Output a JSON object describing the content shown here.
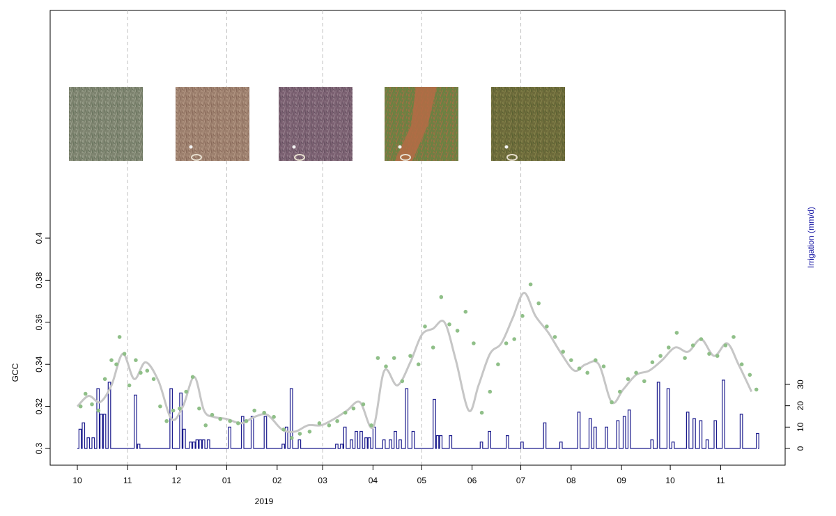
{
  "chart_data": {
    "type": "line",
    "xlabel": "2019",
    "ylabel": "GCC",
    "y2label": "Irrigation (mm/d)",
    "ylim": [
      0.3,
      0.4
    ],
    "y2lim": [
      0,
      30
    ],
    "yticks": [
      "0.3",
      "0.32",
      "0.34",
      "0.36",
      "0.38",
      "0.4"
    ],
    "y2ticks": [
      "0",
      "10",
      "20",
      "30"
    ],
    "x_range": [
      "2018-10-01",
      "2019-11-24"
    ],
    "xticks": [
      {
        "date": "2018-10-01",
        "label": "10"
      },
      {
        "date": "2018-11-01",
        "label": "11"
      },
      {
        "date": "2018-12-01",
        "label": "12"
      },
      {
        "date": "2019-01-01",
        "label": "01"
      },
      {
        "date": "2019-02-01",
        "label": "02"
      },
      {
        "date": "2019-03-01",
        "label": "03"
      },
      {
        "date": "2019-04-01",
        "label": "04"
      },
      {
        "date": "2019-05-01",
        "label": "05"
      },
      {
        "date": "2019-06-01",
        "label": "06"
      },
      {
        "date": "2019-07-01",
        "label": "07"
      },
      {
        "date": "2019-08-01",
        "label": "08"
      },
      {
        "date": "2019-09-01",
        "label": "09"
      },
      {
        "date": "2019-10-01",
        "label": "10"
      },
      {
        "date": "2019-11-01",
        "label": "11"
      }
    ],
    "photo_dates": [
      "2018-11-01",
      "2019-01-01",
      "2019-03-01",
      "2019-05-01",
      "2019-07-01"
    ],
    "gcc_smoothed": {
      "x": [
        "2018-10-01",
        "2018-10-08",
        "2018-10-15",
        "2018-10-22",
        "2018-10-29",
        "2018-11-05",
        "2018-11-12",
        "2018-11-20",
        "2018-11-28",
        "2018-12-05",
        "2018-12-12",
        "2018-12-18",
        "2018-12-24",
        "2019-01-01",
        "2019-01-10",
        "2019-01-18",
        "2019-01-26",
        "2019-02-04",
        "2019-02-12",
        "2019-02-20",
        "2019-02-28",
        "2019-03-08",
        "2019-03-16",
        "2019-03-24",
        "2019-04-01",
        "2019-04-08",
        "2019-04-16",
        "2019-04-24",
        "2019-05-01",
        "2019-05-08",
        "2019-05-15",
        "2019-05-22",
        "2019-05-30",
        "2019-06-05",
        "2019-06-12",
        "2019-06-19",
        "2019-06-26",
        "2019-07-03",
        "2019-07-10",
        "2019-07-18",
        "2019-07-26",
        "2019-08-03",
        "2019-08-10",
        "2019-08-18",
        "2019-08-26",
        "2019-09-02",
        "2019-09-10",
        "2019-09-18",
        "2019-09-26",
        "2019-10-04",
        "2019-10-12",
        "2019-10-20",
        "2019-10-28",
        "2019-11-05",
        "2019-11-12",
        "2019-11-20"
      ],
      "y": [
        0.32,
        0.325,
        0.322,
        0.33,
        0.345,
        0.333,
        0.341,
        0.332,
        0.314,
        0.32,
        0.334,
        0.318,
        0.315,
        0.314,
        0.312,
        0.315,
        0.316,
        0.309,
        0.308,
        0.311,
        0.311,
        0.314,
        0.318,
        0.322,
        0.31,
        0.337,
        0.33,
        0.341,
        0.354,
        0.357,
        0.36,
        0.342,
        0.318,
        0.33,
        0.345,
        0.35,
        0.362,
        0.374,
        0.363,
        0.355,
        0.345,
        0.337,
        0.34,
        0.34,
        0.322,
        0.328,
        0.335,
        0.337,
        0.342,
        0.348,
        0.346,
        0.352,
        0.344,
        0.35,
        0.34,
        0.327
      ]
    },
    "gcc_points": {
      "x": [
        "2018-10-03",
        "2018-10-06",
        "2018-10-10",
        "2018-10-14",
        "2018-10-18",
        "2018-10-22",
        "2018-10-25",
        "2018-10-27",
        "2018-10-30",
        "2018-11-02",
        "2018-11-06",
        "2018-11-09",
        "2018-11-13",
        "2018-11-17",
        "2018-11-21",
        "2018-11-25",
        "2018-11-29",
        "2018-12-03",
        "2018-12-07",
        "2018-12-11",
        "2018-12-15",
        "2018-12-19",
        "2018-12-23",
        "2018-12-28",
        "2019-01-03",
        "2019-01-08",
        "2019-01-13",
        "2019-01-18",
        "2019-01-24",
        "2019-01-30",
        "2019-02-05",
        "2019-02-10",
        "2019-02-15",
        "2019-02-21",
        "2019-02-27",
        "2019-03-05",
        "2019-03-10",
        "2019-03-15",
        "2019-03-20",
        "2019-03-26",
        "2019-03-31",
        "2019-04-04",
        "2019-04-09",
        "2019-04-14",
        "2019-04-19",
        "2019-04-24",
        "2019-04-29",
        "2019-05-03",
        "2019-05-08",
        "2019-05-13",
        "2019-05-18",
        "2019-05-23",
        "2019-05-28",
        "2019-06-02",
        "2019-06-07",
        "2019-06-12",
        "2019-06-17",
        "2019-06-22",
        "2019-06-27",
        "2019-07-02",
        "2019-07-07",
        "2019-07-12",
        "2019-07-17",
        "2019-07-22",
        "2019-07-27",
        "2019-08-01",
        "2019-08-06",
        "2019-08-11",
        "2019-08-16",
        "2019-08-21",
        "2019-08-26",
        "2019-08-31",
        "2019-09-05",
        "2019-09-10",
        "2019-09-15",
        "2019-09-20",
        "2019-09-25",
        "2019-09-30",
        "2019-10-05",
        "2019-10-10",
        "2019-10-15",
        "2019-10-20",
        "2019-10-25",
        "2019-10-30",
        "2019-11-04",
        "2019-11-09",
        "2019-11-14",
        "2019-11-19",
        "2019-11-23"
      ],
      "y": [
        0.32,
        0.326,
        0.321,
        0.318,
        0.333,
        0.342,
        0.34,
        0.353,
        0.345,
        0.33,
        0.342,
        0.336,
        0.337,
        0.333,
        0.32,
        0.313,
        0.318,
        0.319,
        0.327,
        0.334,
        0.319,
        0.311,
        0.316,
        0.314,
        0.313,
        0.312,
        0.313,
        0.318,
        0.317,
        0.315,
        0.309,
        0.305,
        0.307,
        0.308,
        0.312,
        0.311,
        0.313,
        0.317,
        0.319,
        0.321,
        0.311,
        0.343,
        0.339,
        0.343,
        0.332,
        0.344,
        0.34,
        0.358,
        0.348,
        0.372,
        0.359,
        0.356,
        0.365,
        0.35,
        0.317,
        0.327,
        0.34,
        0.35,
        0.352,
        0.363,
        0.378,
        0.369,
        0.358,
        0.353,
        0.346,
        0.342,
        0.338,
        0.336,
        0.342,
        0.339,
        0.322,
        0.327,
        0.333,
        0.336,
        0.332,
        0.341,
        0.344,
        0.348,
        0.355,
        0.343,
        0.349,
        0.352,
        0.345,
        0.344,
        0.349,
        0.353,
        0.34,
        0.335,
        0.328
      ]
    },
    "irrigation_events": {
      "x": [
        "2018-10-02",
        "2018-10-04",
        "2018-10-07",
        "2018-10-10",
        "2018-10-13",
        "2018-10-15",
        "2018-10-17",
        "2018-10-20",
        "2018-11-05",
        "2018-11-07",
        "2018-11-27",
        "2018-12-03",
        "2018-12-05",
        "2018-12-09",
        "2018-12-11",
        "2018-12-13",
        "2018-12-15",
        "2018-12-17",
        "2018-12-20",
        "2019-01-02",
        "2019-01-10",
        "2019-01-16",
        "2019-01-24",
        "2019-02-04",
        "2019-02-06",
        "2019-02-09",
        "2019-02-14",
        "2019-03-09",
        "2019-03-12",
        "2019-03-14",
        "2019-03-18",
        "2019-03-21",
        "2019-03-24",
        "2019-03-27",
        "2019-03-29",
        "2019-04-01",
        "2019-04-07",
        "2019-04-11",
        "2019-04-14",
        "2019-04-17",
        "2019-04-21",
        "2019-04-25",
        "2019-05-08",
        "2019-05-10",
        "2019-05-12",
        "2019-05-18",
        "2019-06-06",
        "2019-06-11",
        "2019-06-22",
        "2019-07-01",
        "2019-07-15",
        "2019-07-25",
        "2019-08-05",
        "2019-08-12",
        "2019-08-15",
        "2019-08-22",
        "2019-08-29",
        "2019-09-02",
        "2019-09-05",
        "2019-09-19",
        "2019-09-23",
        "2019-09-29",
        "2019-10-02",
        "2019-10-11",
        "2019-10-15",
        "2019-10-19",
        "2019-10-23",
        "2019-10-28",
        "2019-11-02",
        "2019-11-13",
        "2019-11-23"
      ],
      "y": [
        9,
        12,
        5,
        5,
        28,
        16,
        16,
        31,
        25,
        2,
        28,
        26,
        9,
        3,
        3,
        4,
        4,
        4,
        4,
        10,
        15,
        15,
        15,
        2,
        10,
        28,
        4,
        2,
        2,
        10,
        4,
        8,
        8,
        5,
        5,
        10,
        4,
        4,
        8,
        4,
        28,
        8,
        23,
        6,
        6,
        6,
        3,
        8,
        6,
        3,
        12,
        3,
        17,
        14,
        10,
        10,
        13,
        15,
        18,
        4,
        31,
        28,
        3,
        17,
        14,
        13,
        4,
        13,
        32,
        16,
        7
      ]
    }
  },
  "colors": {
    "gcc_points": "#8fbf88",
    "gcc_smoothed": "#c6c6c6",
    "irrigation": "#1a1a8c",
    "grid": "#c0c0c0"
  },
  "thumbnails": [
    {
      "name": "photo-2018-11",
      "base": "#7d836f",
      "mid": "#5c6a54",
      "light": "#a6ac98"
    },
    {
      "name": "photo-2019-01",
      "base": "#9c7f6d",
      "mid": "#7e5f50",
      "light": "#bda08c"
    },
    {
      "name": "photo-2019-03",
      "base": "#7a6071",
      "mid": "#5a4656",
      "light": "#a08a96"
    },
    {
      "name": "photo-2019-05",
      "base": "#6f7f43",
      "mid": "#5d8a3c",
      "light": "#b56b45"
    },
    {
      "name": "photo-2019-07",
      "base": "#6c6a3a",
      "mid": "#4f5a2c",
      "light": "#8e8a50"
    }
  ]
}
